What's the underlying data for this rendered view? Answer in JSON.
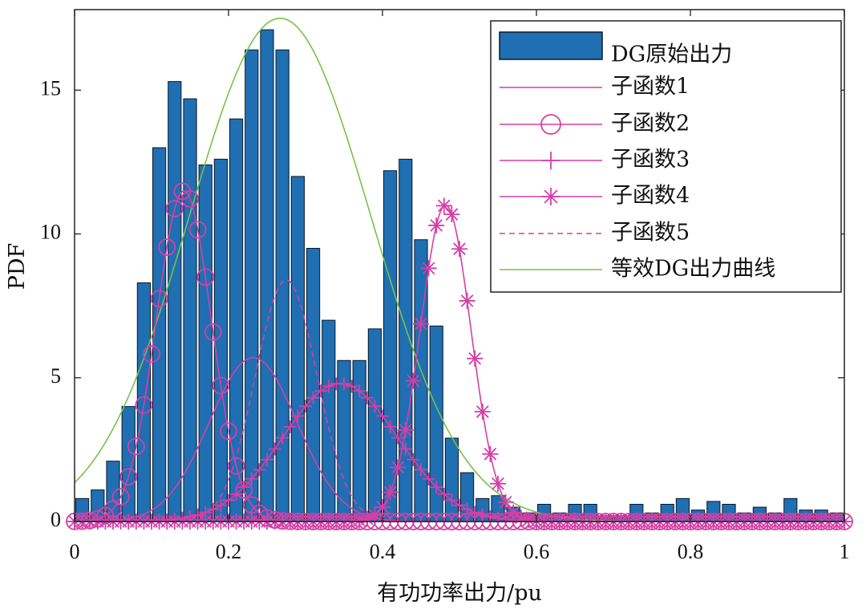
{
  "chart_data": {
    "type": "bar",
    "title": "",
    "xlabel": "有功功率出力/pu",
    "ylabel": "PDF",
    "xlim": [
      0,
      1
    ],
    "ylim": [
      0,
      17.8
    ],
    "xticks": [
      0,
      0.2,
      0.4,
      0.6,
      0.8,
      1
    ],
    "xtick_labels": [
      "0",
      "0.2",
      "0.4",
      "0.6",
      "0.8",
      "1"
    ],
    "yticks": [
      0,
      5,
      10,
      15
    ],
    "ytick_labels": [
      "0",
      "5",
      "10",
      "15"
    ],
    "legend_position": "top-right",
    "colors": {
      "bar_fill": "#1f6fb2",
      "bar_edge": "#0b1a2a",
      "subfunction": "#d63fa6",
      "equivalent": "#77c24a",
      "axis": "#222222"
    },
    "bin_width": 0.02,
    "histogram": {
      "name": "DG原始出力",
      "bin_centers": [
        0.01,
        0.03,
        0.05,
        0.07,
        0.09,
        0.11,
        0.13,
        0.15,
        0.17,
        0.19,
        0.21,
        0.23,
        0.25,
        0.27,
        0.29,
        0.31,
        0.33,
        0.35,
        0.37,
        0.39,
        0.41,
        0.43,
        0.45,
        0.47,
        0.49,
        0.51,
        0.53,
        0.55,
        0.57,
        0.59,
        0.61,
        0.63,
        0.65,
        0.67,
        0.69,
        0.71,
        0.73,
        0.75,
        0.77,
        0.79,
        0.81,
        0.83,
        0.85,
        0.87,
        0.89,
        0.91,
        0.93,
        0.95,
        0.97,
        0.99
      ],
      "values": [
        0.8,
        1.1,
        2.1,
        4.0,
        8.3,
        13.0,
        15.3,
        14.7,
        12.4,
        12.6,
        14.0,
        16.4,
        17.1,
        16.4,
        12.0,
        9.5,
        7.0,
        5.6,
        5.6,
        6.7,
        12.2,
        12.6,
        9.8,
        6.8,
        2.9,
        1.7,
        0.8,
        0.9,
        0.5,
        0.3,
        0.6,
        0.3,
        0.6,
        0.6,
        0.2,
        0.2,
        0.6,
        0.3,
        0.6,
        0.8,
        0.4,
        0.7,
        0.6,
        0.3,
        0.5,
        0.3,
        0.8,
        0.4,
        0.4,
        0.3
      ]
    },
    "series": [
      {
        "name": "子函数1",
        "marker": "none",
        "style": "solid",
        "gaussian": {
          "mu": 0.232,
          "sigma": 0.057,
          "peak": 5.7
        }
      },
      {
        "name": "子函数2",
        "marker": "circle",
        "style": "solid",
        "gaussian": {
          "mu": 0.142,
          "sigma": 0.036,
          "peak": 11.5
        }
      },
      {
        "name": "子函数3",
        "marker": "plus",
        "style": "solid",
        "gaussian": {
          "mu": 0.345,
          "sigma": 0.075,
          "peak": 4.8
        }
      },
      {
        "name": "子函数4",
        "marker": "star",
        "style": "solid",
        "gaussian": {
          "mu": 0.482,
          "sigma": 0.033,
          "peak": 11.0
        }
      },
      {
        "name": "子函数5",
        "marker": "none",
        "style": "dashed",
        "gaussian": {
          "mu": 0.275,
          "sigma": 0.04,
          "peak": 8.4
        }
      },
      {
        "name": "等效DG出力曲线",
        "marker": "none",
        "style": "solid",
        "color": "green",
        "gaussian": {
          "mu": 0.267,
          "sigma": 0.118,
          "peak": 17.5
        }
      }
    ]
  }
}
